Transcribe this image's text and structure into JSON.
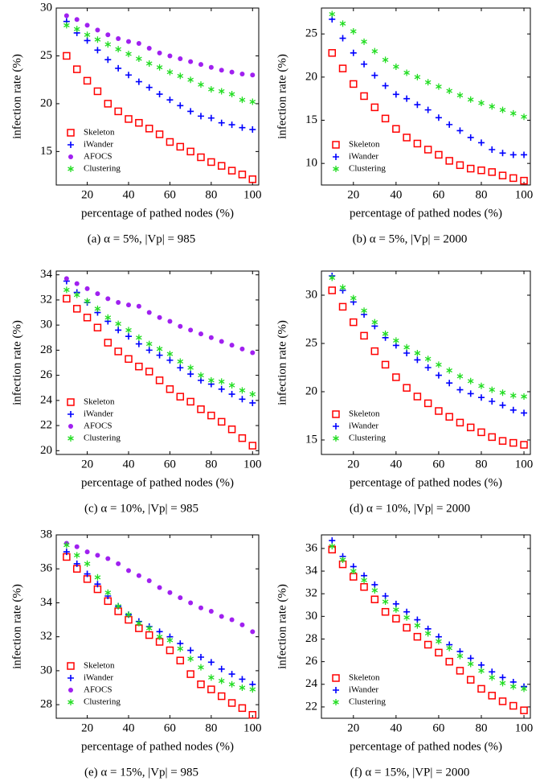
{
  "chart_data": [
    {
      "type": "scatter",
      "caption": "(a) α = 5%, |Vp| = 985",
      "xlabel": "percentage of pathed nodes (%)",
      "ylabel": "infection rate (%)",
      "legend": "lower left",
      "x": [
        10,
        15,
        20,
        25,
        30,
        35,
        40,
        45,
        50,
        55,
        60,
        65,
        70,
        75,
        80,
        85,
        90,
        95,
        100
      ],
      "xlim": [
        5,
        103
      ],
      "xticks": [
        20,
        40,
        60,
        80,
        100
      ],
      "ylim": [
        11.5,
        30
      ],
      "yticks": [
        15,
        20,
        25,
        30
      ],
      "series": [
        {
          "name": "Skeleton",
          "color": "#ff0000",
          "marker": "square",
          "values": [
            25.0,
            23.6,
            22.4,
            21.3,
            20.0,
            19.2,
            18.4,
            18.0,
            17.4,
            16.8,
            16.0,
            15.5,
            15.0,
            14.4,
            13.9,
            13.5,
            13.0,
            12.6,
            12.1
          ]
        },
        {
          "name": "iWander",
          "color": "#0000ff",
          "marker": "plus",
          "values": [
            28.6,
            27.4,
            26.6,
            25.6,
            24.6,
            23.7,
            23.0,
            22.3,
            21.7,
            21.0,
            20.4,
            19.8,
            19.2,
            18.7,
            18.5,
            18.0,
            17.8,
            17.5,
            17.3
          ]
        },
        {
          "name": "AFOCS",
          "color": "#a020f0",
          "marker": "circle",
          "values": [
            29.2,
            28.8,
            28.2,
            27.7,
            27.2,
            26.8,
            26.5,
            26.3,
            25.8,
            25.3,
            25.0,
            24.7,
            24.4,
            24.1,
            23.8,
            23.5,
            23.3,
            23.1,
            23.0
          ]
        },
        {
          "name": "Clustering",
          "color": "#22dd22",
          "marker": "asterisk",
          "values": [
            28.2,
            27.8,
            27.2,
            26.7,
            26.2,
            25.7,
            25.2,
            24.7,
            24.2,
            23.8,
            23.3,
            22.9,
            22.5,
            22.0,
            21.5,
            21.3,
            21.0,
            20.4,
            20.2
          ]
        }
      ]
    },
    {
      "type": "scatter",
      "caption": "(b) α = 5%, |Vp| = 2000",
      "xlabel": "percentage of pathed nodes (%)",
      "ylabel": "infection rate (%)",
      "legend": "lower left",
      "x": [
        10,
        15,
        20,
        25,
        30,
        35,
        40,
        45,
        50,
        55,
        60,
        65,
        70,
        75,
        80,
        85,
        90,
        95,
        100
      ],
      "xlim": [
        5,
        103
      ],
      "xticks": [
        20,
        40,
        60,
        80,
        100
      ],
      "ylim": [
        7.5,
        28
      ],
      "yticks": [
        10,
        15,
        20,
        25
      ],
      "series": [
        {
          "name": "Skeleton",
          "color": "#ff0000",
          "marker": "square",
          "values": [
            22.8,
            21.0,
            19.2,
            17.8,
            16.5,
            15.2,
            14.0,
            13.0,
            12.3,
            11.6,
            11.0,
            10.3,
            9.8,
            9.4,
            9.2,
            9.0,
            8.6,
            8.3,
            8.0
          ]
        },
        {
          "name": "iWander",
          "color": "#0000ff",
          "marker": "plus",
          "values": [
            26.7,
            24.5,
            22.8,
            21.5,
            20.2,
            19.0,
            18.0,
            17.5,
            16.8,
            16.2,
            15.3,
            14.5,
            13.8,
            13.0,
            12.4,
            11.6,
            11.2,
            11.0,
            11.0
          ]
        },
        {
          "name": "Clustering",
          "color": "#22dd22",
          "marker": "asterisk",
          "values": [
            27.3,
            26.2,
            25.3,
            24.1,
            23.0,
            22.0,
            21.2,
            20.5,
            20.0,
            19.4,
            18.9,
            18.4,
            17.9,
            17.4,
            17.0,
            16.6,
            16.2,
            15.8,
            15.4
          ]
        }
      ]
    },
    {
      "type": "scatter",
      "caption": "(c) α = 10%, |Vp| = 985",
      "xlabel": "percentage of pathed nodes (%)",
      "ylabel": "infection rate (%)",
      "legend": "lower left",
      "x": [
        10,
        15,
        20,
        25,
        30,
        35,
        40,
        45,
        50,
        55,
        60,
        65,
        70,
        75,
        80,
        85,
        90,
        95,
        100
      ],
      "xlim": [
        5,
        103
      ],
      "xticks": [
        20,
        40,
        60,
        80,
        100
      ],
      "ylim": [
        19.7,
        34.3
      ],
      "yticks": [
        20,
        22,
        24,
        26,
        28,
        30,
        32,
        34
      ],
      "series": [
        {
          "name": "Skeleton",
          "color": "#ff0000",
          "marker": "square",
          "values": [
            32.1,
            31.3,
            30.6,
            29.8,
            28.6,
            27.9,
            27.3,
            26.7,
            26.3,
            25.6,
            24.9,
            24.3,
            23.9,
            23.3,
            22.8,
            22.3,
            21.7,
            21.0,
            20.4
          ]
        },
        {
          "name": "iWander",
          "color": "#0000ff",
          "marker": "plus",
          "values": [
            33.5,
            32.6,
            31.8,
            31.0,
            30.3,
            29.6,
            29.1,
            28.5,
            28.0,
            27.6,
            27.2,
            26.6,
            26.1,
            25.6,
            25.3,
            24.9,
            24.5,
            24.1,
            23.8
          ]
        },
        {
          "name": "AFOCS",
          "color": "#a020f0",
          "marker": "circle",
          "values": [
            33.7,
            33.3,
            32.9,
            32.5,
            32.1,
            31.8,
            31.6,
            31.5,
            31.0,
            30.6,
            30.3,
            29.9,
            29.6,
            29.3,
            29.0,
            28.7,
            28.4,
            28.1,
            27.8
          ]
        },
        {
          "name": "Clustering",
          "color": "#22dd22",
          "marker": "asterisk",
          "values": [
            32.8,
            32.4,
            31.9,
            31.3,
            30.6,
            30.1,
            29.6,
            29.0,
            28.5,
            28.1,
            27.7,
            27.1,
            26.6,
            26.0,
            25.6,
            25.5,
            25.2,
            24.8,
            24.5
          ]
        }
      ]
    },
    {
      "type": "scatter",
      "caption": "(d) α = 10%, |Vp| = 2000",
      "xlabel": "percentage of pathed nodes (%)",
      "ylabel": "infection rate (%)",
      "legend": "lower left",
      "x": [
        10,
        15,
        20,
        25,
        30,
        35,
        40,
        45,
        50,
        55,
        60,
        65,
        70,
        75,
        80,
        85,
        90,
        95,
        100
      ],
      "xlim": [
        5,
        103
      ],
      "xticks": [
        20,
        40,
        60,
        80,
        100
      ],
      "ylim": [
        13.5,
        32.5
      ],
      "yticks": [
        15,
        20,
        25,
        30
      ],
      "series": [
        {
          "name": "Skeleton",
          "color": "#ff0000",
          "marker": "square",
          "values": [
            30.5,
            28.8,
            27.2,
            25.8,
            24.2,
            22.8,
            21.5,
            20.4,
            19.5,
            18.8,
            18.0,
            17.4,
            16.8,
            16.3,
            15.8,
            15.3,
            14.9,
            14.7,
            14.5
          ]
        },
        {
          "name": "iWander",
          "color": "#0000ff",
          "marker": "plus",
          "values": [
            32.0,
            30.5,
            29.3,
            28.0,
            26.8,
            25.6,
            24.8,
            24.0,
            23.3,
            22.5,
            21.7,
            20.9,
            20.2,
            19.8,
            19.4,
            19.0,
            18.6,
            18.1,
            17.8
          ]
        },
        {
          "name": "Clustering",
          "color": "#22dd22",
          "marker": "asterisk",
          "values": [
            31.8,
            30.8,
            29.7,
            28.4,
            27.2,
            26.0,
            25.3,
            24.6,
            24.0,
            23.4,
            22.8,
            22.2,
            21.6,
            21.1,
            20.6,
            20.2,
            19.9,
            19.6,
            19.5
          ]
        }
      ]
    },
    {
      "type": "scatter",
      "caption": "(e) α = 15%, |Vp| = 985",
      "xlabel": "percentage of pathed nodes (%)",
      "ylabel": "infection rate (%)",
      "legend": "lower left",
      "x": [
        10,
        15,
        20,
        25,
        30,
        35,
        40,
        45,
        50,
        55,
        60,
        65,
        70,
        75,
        80,
        85,
        90,
        95,
        100
      ],
      "xlim": [
        5,
        103
      ],
      "xticks": [
        20,
        40,
        60,
        80,
        100
      ],
      "ylim": [
        27.2,
        38
      ],
      "yticks": [
        28,
        30,
        32,
        34,
        36,
        38
      ],
      "series": [
        {
          "name": "Skeleton",
          "color": "#ff0000",
          "marker": "square",
          "values": [
            36.7,
            36.0,
            35.4,
            34.8,
            34.1,
            33.5,
            33.0,
            32.5,
            32.1,
            31.7,
            31.2,
            30.6,
            29.8,
            29.2,
            28.9,
            28.5,
            28.1,
            27.8,
            27.4
          ]
        },
        {
          "name": "iWander",
          "color": "#0000ff",
          "marker": "plus",
          "values": [
            37.0,
            36.3,
            35.7,
            35.1,
            34.4,
            33.8,
            33.3,
            32.9,
            32.6,
            32.3,
            32.0,
            31.6,
            31.2,
            30.8,
            30.5,
            30.1,
            29.8,
            29.5,
            29.2
          ]
        },
        {
          "name": "AFOCS",
          "color": "#a020f0",
          "marker": "circle",
          "values": [
            37.5,
            37.3,
            37.0,
            36.8,
            36.6,
            36.3,
            35.9,
            35.6,
            35.3,
            34.9,
            34.6,
            34.3,
            34.0,
            33.7,
            33.5,
            33.2,
            33.0,
            32.7,
            32.3
          ]
        },
        {
          "name": "Clustering",
          "color": "#22dd22",
          "marker": "asterisk",
          "values": [
            37.4,
            36.8,
            36.3,
            35.5,
            34.6,
            33.8,
            33.3,
            32.8,
            32.5,
            32.0,
            31.8,
            31.3,
            30.7,
            30.2,
            29.6,
            29.4,
            29.2,
            29.0,
            28.9
          ]
        }
      ]
    },
    {
      "type": "scatter",
      "caption": "(f) α = 15%, |VP| = 2000",
      "xlabel": "percentage of pathed nodes (%)",
      "ylabel": "infection rate (%)",
      "legend": "lower left",
      "x": [
        10,
        15,
        20,
        25,
        30,
        35,
        40,
        45,
        50,
        55,
        60,
        65,
        70,
        75,
        80,
        85,
        90,
        95,
        100
      ],
      "xlim": [
        5,
        103
      ],
      "xticks": [
        20,
        40,
        60,
        80,
        100
      ],
      "ylim": [
        21,
        37.2
      ],
      "yticks": [
        22,
        24,
        26,
        28,
        30,
        32,
        34,
        36
      ],
      "series": [
        {
          "name": "Skeleton",
          "color": "#ff0000",
          "marker": "square",
          "values": [
            35.9,
            34.6,
            33.5,
            32.6,
            31.5,
            30.4,
            29.8,
            29.0,
            28.2,
            27.5,
            26.8,
            26.0,
            25.2,
            24.4,
            23.6,
            23.0,
            22.5,
            22.1,
            21.7
          ]
        },
        {
          "name": "iWander",
          "color": "#0000ff",
          "marker": "plus",
          "values": [
            36.7,
            35.3,
            34.4,
            33.6,
            32.8,
            31.8,
            31.1,
            30.4,
            29.7,
            28.9,
            28.2,
            27.5,
            26.9,
            26.3,
            25.7,
            25.1,
            24.6,
            24.2,
            23.8
          ]
        },
        {
          "name": "Clustering",
          "color": "#22dd22",
          "marker": "asterisk",
          "values": [
            36.2,
            35.0,
            34.0,
            33.2,
            32.3,
            31.3,
            30.6,
            29.9,
            29.2,
            28.5,
            27.8,
            27.2,
            26.5,
            25.8,
            25.2,
            24.6,
            24.1,
            23.8,
            23.6
          ]
        }
      ]
    }
  ]
}
